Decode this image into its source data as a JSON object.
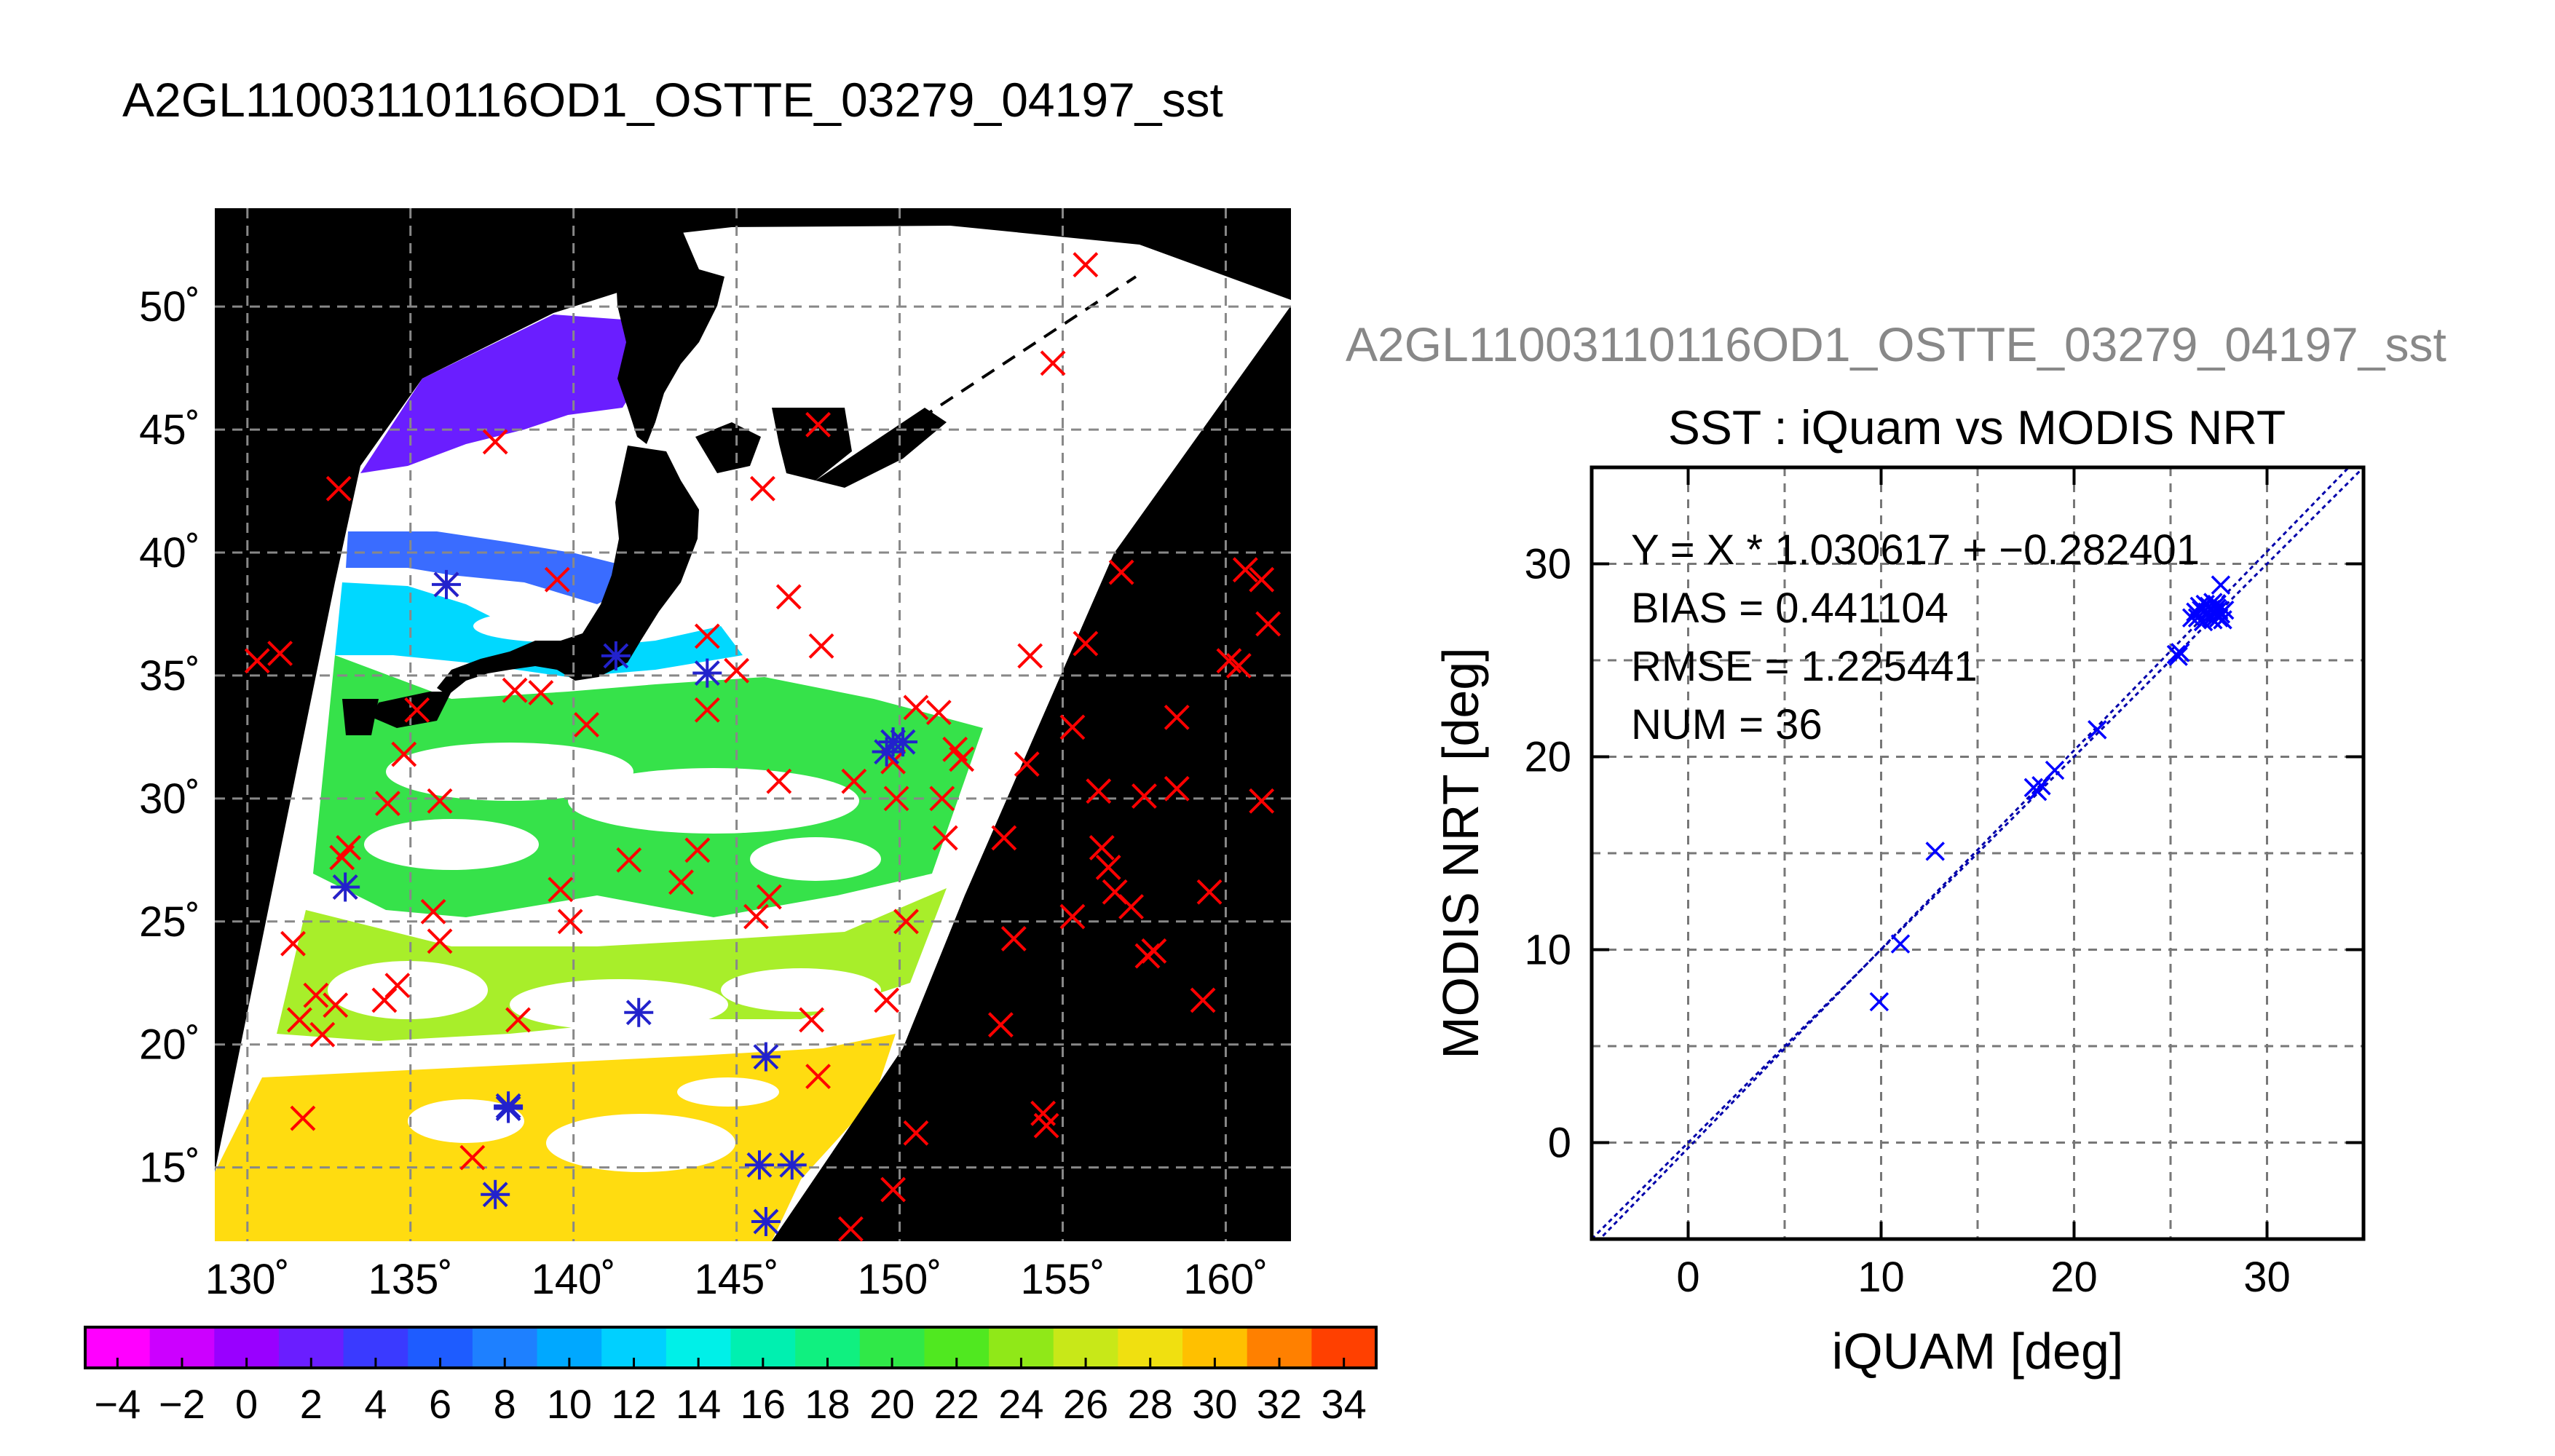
{
  "figure": {
    "title": "A2GL11003110116OD1_OSTTE_03279_04197_sst",
    "scatter_title_gray": "A2GL11003110116OD1_OSTTE_03279_04197_sst"
  },
  "colors": {
    "map_background": "#000000",
    "cross": "#ff0000",
    "star": "#2222cc",
    "scatter_marker": "#0000ff",
    "regression_line": "#0000aa",
    "gray_title": "#888888"
  },
  "chart_data": [
    {
      "type": "heatmap",
      "name": "sst-map",
      "title": "A2GL11003110116OD1_OSTTE_03279_04197_sst",
      "x_ticks": [
        130,
        135,
        140,
        145,
        150,
        155,
        160
      ],
      "x_tick_labels": [
        "130˚",
        "135˚",
        "140˚",
        "145˚",
        "150˚",
        "155˚",
        "160˚"
      ],
      "y_ticks": [
        15,
        20,
        25,
        30,
        35,
        40,
        45,
        50
      ],
      "y_tick_labels": [
        "15˚",
        "20˚",
        "25˚",
        "30˚",
        "35˚",
        "40˚",
        "45˚",
        "50˚"
      ],
      "xlim": [
        129,
        162
      ],
      "ylim": [
        12,
        54
      ],
      "grid": true,
      "buoy_crosses": [
        [
          130.3,
          35.6
        ],
        [
          131.0,
          35.9
        ],
        [
          131.4,
          24.1
        ],
        [
          131.6,
          21.0
        ],
        [
          132.1,
          22.0
        ],
        [
          132.3,
          20.4
        ],
        [
          132.7,
          21.6
        ],
        [
          132.9,
          27.6
        ],
        [
          133.1,
          28.0
        ],
        [
          133.0,
          26.4
        ],
        [
          132.8,
          42.6
        ],
        [
          131.7,
          17.0
        ],
        [
          134.2,
          21.8
        ],
        [
          134.6,
          22.4
        ],
        [
          134.3,
          29.8
        ],
        [
          134.8,
          31.8
        ],
        [
          135.2,
          33.6
        ],
        [
          135.7,
          25.4
        ],
        [
          135.9,
          24.2
        ],
        [
          135.9,
          29.9
        ],
        [
          136.1,
          38.7
        ],
        [
          136.9,
          15.4
        ],
        [
          137.6,
          44.5
        ],
        [
          138.2,
          34.4
        ],
        [
          138.3,
          21.0
        ],
        [
          139.0,
          34.3
        ],
        [
          139.5,
          38.9
        ],
        [
          139.6,
          26.3
        ],
        [
          139.9,
          25.0
        ],
        [
          140.4,
          33.0
        ],
        [
          141.7,
          27.5
        ],
        [
          143.3,
          26.6
        ],
        [
          143.8,
          27.9
        ],
        [
          144.1,
          33.6
        ],
        [
          144.1,
          36.6
        ],
        [
          145.0,
          35.2
        ],
        [
          145.6,
          25.2
        ],
        [
          145.8,
          42.6
        ],
        [
          146.0,
          26.0
        ],
        [
          146.6,
          38.2
        ],
        [
          146.3,
          30.7
        ],
        [
          147.3,
          21.0
        ],
        [
          147.5,
          45.2
        ],
        [
          147.5,
          18.7
        ],
        [
          147.6,
          36.2
        ],
        [
          148.5,
          12.5
        ],
        [
          148.6,
          30.7
        ],
        [
          149.8,
          14.1
        ],
        [
          149.8,
          31.5
        ],
        [
          149.9,
          30.0
        ],
        [
          150.2,
          25.0
        ],
        [
          150.5,
          33.7
        ],
        [
          150.5,
          16.4
        ],
        [
          149.6,
          21.8
        ],
        [
          151.2,
          33.5
        ],
        [
          151.3,
          30.0
        ],
        [
          151.4,
          28.4
        ],
        [
          151.7,
          32.0
        ],
        [
          151.9,
          31.6
        ],
        [
          153.1,
          20.8
        ],
        [
          153.2,
          28.4
        ],
        [
          153.5,
          24.3
        ],
        [
          154.0,
          35.8
        ],
        [
          153.9,
          31.4
        ],
        [
          154.4,
          17.2
        ],
        [
          154.5,
          16.7
        ],
        [
          155.3,
          32.9
        ],
        [
          155.3,
          25.2
        ],
        [
          155.7,
          36.3
        ],
        [
          155.7,
          51.7
        ],
        [
          154.7,
          47.7
        ],
        [
          156.1,
          30.3
        ],
        [
          156.2,
          28.0
        ],
        [
          156.4,
          27.2
        ],
        [
          156.6,
          26.2
        ],
        [
          156.8,
          39.2
        ],
        [
          157.1,
          25.6
        ],
        [
          157.5,
          30.1
        ],
        [
          157.6,
          23.6
        ],
        [
          157.8,
          23.8
        ],
        [
          158.5,
          30.4
        ],
        [
          158.5,
          33.3
        ],
        [
          159.3,
          21.8
        ],
        [
          159.5,
          26.2
        ],
        [
          160.4,
          35.4
        ],
        [
          160.6,
          39.3
        ],
        [
          161.1,
          38.9
        ],
        [
          161.3,
          37.1
        ],
        [
          161.1,
          29.9
        ],
        [
          160.1,
          35.6
        ]
      ],
      "buoy_stars": [
        [
          133.0,
          26.4
        ],
        [
          136.1,
          38.7
        ],
        [
          137.6,
          13.9
        ],
        [
          138.0,
          17.5
        ],
        [
          138.0,
          17.4
        ],
        [
          141.3,
          35.8
        ],
        [
          142.0,
          21.3
        ],
        [
          144.1,
          35.1
        ],
        [
          145.7,
          15.1
        ],
        [
          145.9,
          12.8
        ],
        [
          145.9,
          19.5
        ],
        [
          146.7,
          15.1
        ],
        [
          149.6,
          31.9
        ],
        [
          149.8,
          32.3
        ],
        [
          150.1,
          32.3
        ]
      ]
    },
    {
      "type": "heatmap-colorbar",
      "name": "sst-colorbar",
      "min": -5,
      "max": 35,
      "tick_values": [
        -4,
        -2,
        0,
        2,
        4,
        6,
        8,
        10,
        12,
        14,
        16,
        18,
        20,
        22,
        24,
        26,
        28,
        30,
        32,
        34
      ],
      "tick_labels": [
        "−4",
        "−2",
        "0",
        "2",
        "4",
        "6",
        "8",
        "10",
        "12",
        "14",
        "16",
        "18",
        "20",
        "22",
        "24",
        "26",
        "28",
        "30",
        "32",
        "34"
      ]
    },
    {
      "type": "scatter",
      "name": "iquam-vs-modis",
      "title": "SST : iQuam vs MODIS NRT",
      "xlabel": "iQUAM [deg]",
      "ylabel": "MODIS NRT [deg]",
      "xlim": [
        -5,
        35
      ],
      "ylim": [
        -5,
        35
      ],
      "x_ticks": [
        0,
        10,
        20,
        30
      ],
      "y_ticks": [
        0,
        10,
        20,
        30
      ],
      "x_tick_labels": [
        "0",
        "10",
        "20",
        "30"
      ],
      "y_tick_labels": [
        "0",
        "10",
        "20",
        "30"
      ],
      "grid": true,
      "annotations": [
        "Y = X * 1.030617 + −0.282401",
        "BIAS = 0.441104",
        "RMSE = 1.225441",
        "NUM = 36"
      ],
      "regression": {
        "slope": 1.030617,
        "intercept": -0.282401
      },
      "points": [
        [
          9.9,
          7.3
        ],
        [
          11.0,
          10.3
        ],
        [
          12.8,
          15.1
        ],
        [
          17.9,
          18.4
        ],
        [
          18.1,
          18.2
        ],
        [
          18.3,
          18.5
        ],
        [
          19.0,
          19.3
        ],
        [
          21.2,
          21.4
        ],
        [
          25.3,
          25.3
        ],
        [
          25.4,
          25.2
        ],
        [
          25.5,
          25.4
        ],
        [
          26.1,
          27.2
        ],
        [
          26.3,
          27.5
        ],
        [
          26.5,
          27.8
        ],
        [
          26.6,
          27.6
        ],
        [
          26.8,
          27.9
        ],
        [
          26.9,
          27.4
        ],
        [
          27.0,
          27.8
        ],
        [
          27.0,
          27.3
        ],
        [
          27.1,
          27.6
        ],
        [
          27.2,
          28.0
        ],
        [
          27.2,
          27.1
        ],
        [
          27.3,
          27.5
        ],
        [
          27.3,
          27.4
        ],
        [
          27.4,
          27.9
        ],
        [
          27.5,
          27.2
        ],
        [
          27.5,
          27.6
        ],
        [
          27.6,
          28.9
        ],
        [
          27.6,
          27.4
        ],
        [
          27.7,
          27.1
        ],
        [
          26.4,
          27.2
        ],
        [
          26.7,
          27.0
        ],
        [
          27.8,
          27.6
        ],
        [
          27.4,
          27.7
        ],
        [
          26.9,
          27.5
        ],
        [
          27.1,
          27.2
        ]
      ]
    }
  ]
}
